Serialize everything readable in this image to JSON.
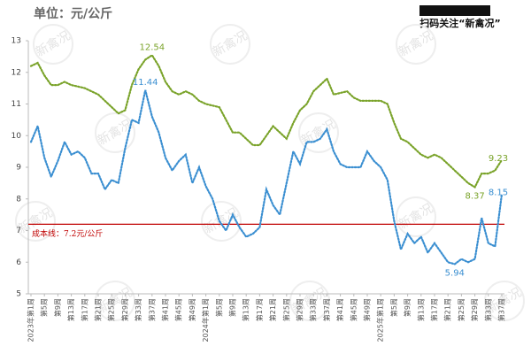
{
  "chart_data": {
    "type": "line",
    "unit_label": "单位：元/公斤",
    "promo": "扫码关注“新禽况”",
    "watermark": "新禽况",
    "categories": [
      "2023年第1周",
      null,
      "第5周",
      null,
      "第9周",
      null,
      "第13周",
      null,
      "第17周",
      null,
      "第21周",
      null,
      "第25周",
      null,
      "第29周",
      null,
      "第33周",
      null,
      "第37周",
      null,
      "第41周",
      null,
      "第45周",
      null,
      "第49周",
      null,
      "2024年第1周",
      null,
      "第5周",
      null,
      "第9周",
      null,
      "第13周",
      null,
      "第17周",
      null,
      "第21周",
      null,
      "第25周",
      null,
      "第29周",
      null,
      "第33周",
      null,
      "第37周",
      null,
      "第41周",
      null,
      "第45周",
      null,
      "第49周",
      null,
      "2025年第1周",
      null,
      "第5周",
      null,
      "第9周",
      null,
      "第13周",
      null,
      "第17周",
      null,
      "第21周",
      null,
      "第25周",
      null,
      "第29周",
      null,
      "第33周",
      null,
      "第37周"
    ],
    "series": [
      {
        "color": "#7aa32a",
        "values": [
          12.2,
          12.3,
          11.9,
          11.6,
          11.6,
          11.7,
          11.6,
          11.55,
          11.5,
          11.4,
          11.3,
          11.1,
          10.9,
          10.7,
          10.8,
          11.6,
          12.1,
          12.4,
          12.54,
          12.2,
          11.7,
          11.4,
          11.3,
          11.4,
          11.3,
          11.1,
          11.0,
          10.95,
          10.9,
          10.5,
          10.1,
          10.1,
          9.9,
          9.7,
          9.7,
          10.0,
          10.3,
          10.1,
          9.9,
          10.4,
          10.8,
          11.0,
          11.4,
          11.6,
          11.8,
          11.3,
          11.35,
          11.4,
          11.2,
          11.1,
          11.1,
          11.1,
          11.1,
          11.0,
          10.4,
          9.9,
          9.8,
          9.6,
          9.4,
          9.3,
          9.4,
          9.3,
          9.1,
          8.9,
          8.7,
          8.5,
          8.37,
          8.8,
          8.8,
          8.9,
          9.23
        ],
        "value_labels": [
          null,
          null,
          null,
          null,
          null,
          null,
          null,
          null,
          null,
          null,
          null,
          null,
          null,
          null,
          null,
          null,
          null,
          null,
          "12.54",
          null,
          null,
          null,
          null,
          null,
          null,
          null,
          null,
          null,
          null,
          null,
          null,
          null,
          null,
          null,
          null,
          null,
          null,
          null,
          null,
          null,
          null,
          null,
          null,
          null,
          null,
          null,
          null,
          null,
          null,
          null,
          null,
          null,
          null,
          null,
          null,
          null,
          null,
          null,
          null,
          null,
          null,
          null,
          null,
          null,
          null,
          null,
          "8.37",
          null,
          null,
          null,
          "9.23"
        ]
      },
      {
        "color": "#3b8fd1",
        "values": [
          9.8,
          10.3,
          9.3,
          8.7,
          9.2,
          9.8,
          9.4,
          9.5,
          9.3,
          8.8,
          8.8,
          8.3,
          8.6,
          8.5,
          9.6,
          10.5,
          10.4,
          11.44,
          10.6,
          10.1,
          9.3,
          8.9,
          9.2,
          9.4,
          8.5,
          9.0,
          8.4,
          8.0,
          7.3,
          7.0,
          7.5,
          7.1,
          6.8,
          6.9,
          7.1,
          8.3,
          7.8,
          7.5,
          8.5,
          9.5,
          9.1,
          9.8,
          9.8,
          9.9,
          10.2,
          9.5,
          9.1,
          9.0,
          9.0,
          9.0,
          9.5,
          9.2,
          9.0,
          8.6,
          7.3,
          6.4,
          6.9,
          6.6,
          6.8,
          6.3,
          6.6,
          6.3,
          6.0,
          5.94,
          6.1,
          6.0,
          6.1,
          7.4,
          6.6,
          6.5,
          8.15
        ],
        "value_labels": [
          null,
          null,
          null,
          null,
          null,
          null,
          null,
          null,
          null,
          null,
          null,
          null,
          null,
          null,
          null,
          null,
          null,
          "11.44",
          null,
          null,
          null,
          null,
          null,
          null,
          null,
          null,
          null,
          null,
          null,
          null,
          null,
          null,
          null,
          null,
          null,
          null,
          null,
          null,
          null,
          null,
          null,
          null,
          null,
          null,
          null,
          null,
          null,
          null,
          null,
          null,
          null,
          null,
          null,
          null,
          null,
          null,
          null,
          null,
          null,
          null,
          null,
          null,
          null,
          "5.94",
          null,
          null,
          null,
          null,
          null,
          null,
          "8.15"
        ]
      }
    ],
    "reference_line": {
      "value": 7.2,
      "label": "成本线：7.2元/公斤",
      "color": "#c00000"
    },
    "ylim": [
      5,
      13
    ],
    "yticks": [
      5,
      6,
      7,
      8,
      9,
      10,
      11,
      12,
      13
    ]
  }
}
